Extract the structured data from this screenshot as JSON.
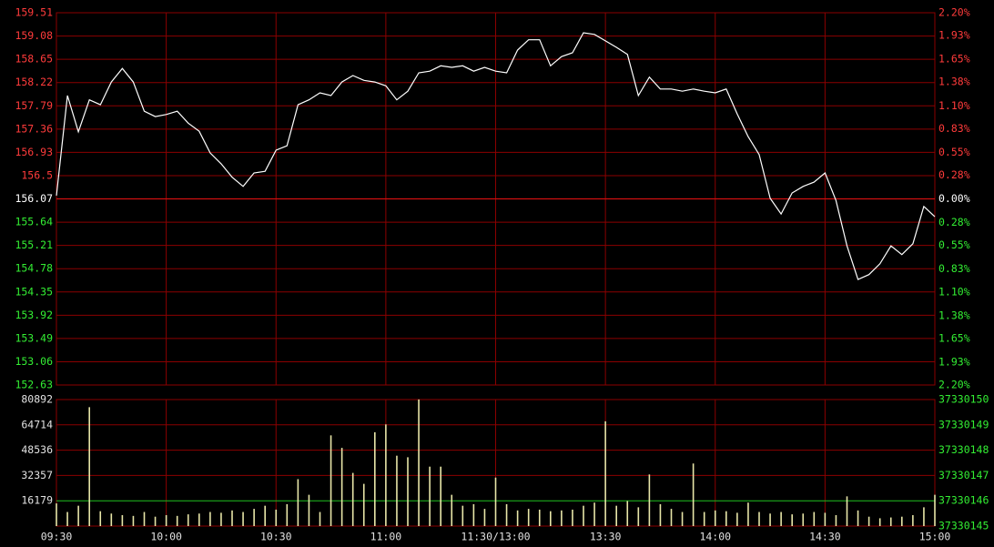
{
  "chart_data": [
    {
      "type": "line",
      "categories": [
        "09:30",
        null,
        null,
        null,
        null,
        null,
        null,
        null,
        null,
        null,
        "10:00",
        null,
        null,
        null,
        null,
        null,
        null,
        null,
        null,
        null,
        "10:30",
        null,
        null,
        null,
        null,
        null,
        null,
        null,
        null,
        null,
        "11:00",
        null,
        null,
        null,
        null,
        null,
        null,
        null,
        null,
        null,
        "11:30/13:00",
        null,
        null,
        null,
        null,
        null,
        null,
        null,
        null,
        null,
        "13:30",
        null,
        null,
        null,
        null,
        null,
        null,
        null,
        null,
        null,
        "14:00",
        null,
        null,
        null,
        null,
        null,
        null,
        null,
        null,
        null,
        "14:30",
        null,
        null,
        null,
        null,
        null,
        null,
        null,
        null,
        null,
        "15:00"
      ],
      "values": [
        156.13,
        157.98,
        157.31,
        157.9,
        157.81,
        158.23,
        158.48,
        158.23,
        157.69,
        157.59,
        157.63,
        157.69,
        157.47,
        157.32,
        156.92,
        156.72,
        156.47,
        156.3,
        156.55,
        156.58,
        156.97,
        157.05,
        157.81,
        157.9,
        158.03,
        157.98,
        158.23,
        158.35,
        158.26,
        158.23,
        158.16,
        157.9,
        158.06,
        158.4,
        158.43,
        158.53,
        158.5,
        158.53,
        158.43,
        158.5,
        158.43,
        158.4,
        158.82,
        159.01,
        159.01,
        158.53,
        158.7,
        158.77,
        159.14,
        159.11,
        158.99,
        158.87,
        158.74,
        157.98,
        158.32,
        158.1,
        158.1,
        158.06,
        158.1,
        158.06,
        158.03,
        158.1,
        157.64,
        157.22,
        156.89,
        156.08,
        155.79,
        156.18,
        156.3,
        156.38,
        156.55,
        156.04,
        155.2,
        154.58,
        154.67,
        154.87,
        155.2,
        155.04,
        155.24,
        155.93,
        155.74
      ],
      "color": "#ffffff",
      "ylim": [
        152.63,
        159.51
      ],
      "yticks": [
        152.63,
        153.06,
        153.49,
        153.92,
        154.35,
        154.78,
        155.21,
        155.64,
        156.07,
        156.5,
        156.93,
        157.36,
        157.79,
        158.22,
        158.65,
        159.08,
        159.51
      ],
      "y2lim": [
        -2.2,
        2.2
      ],
      "y2ticks": [
        {
          "value": -2.2,
          "label": "2.20%"
        },
        {
          "value": -1.93,
          "label": "1.93%"
        },
        {
          "value": -1.65,
          "label": "1.65%"
        },
        {
          "value": -1.38,
          "label": "1.38%"
        },
        {
          "value": -1.1,
          "label": "1.10%"
        },
        {
          "value": -0.83,
          "label": "0.83%"
        },
        {
          "value": -0.55,
          "label": "0.55%"
        },
        {
          "value": -0.28,
          "label": "0.28%"
        },
        {
          "value": 0,
          "label": "0.00%"
        },
        {
          "value": 0.28,
          "label": "0.28%"
        },
        {
          "value": 0.55,
          "label": "0.55%"
        },
        {
          "value": 0.83,
          "label": "0.83%"
        },
        {
          "value": 1.1,
          "label": "1.10%"
        },
        {
          "value": 1.38,
          "label": "1.38%"
        },
        {
          "value": 1.65,
          "label": "1.65%"
        },
        {
          "value": 1.93,
          "label": "1.93%"
        },
        {
          "value": 2.2,
          "label": "2.20%"
        }
      ],
      "grid": true
    },
    {
      "type": "bar",
      "categories": [
        "09:30",
        null,
        null,
        null,
        null,
        null,
        null,
        null,
        null,
        null,
        "10:00",
        null,
        null,
        null,
        null,
        null,
        null,
        null,
        null,
        null,
        "10:30",
        null,
        null,
        null,
        null,
        null,
        null,
        null,
        null,
        null,
        "11:00",
        null,
        null,
        null,
        null,
        null,
        null,
        null,
        null,
        null,
        "11:30/13:00",
        null,
        null,
        null,
        null,
        null,
        null,
        null,
        null,
        null,
        "13:30",
        null,
        null,
        null,
        null,
        null,
        null,
        null,
        null,
        null,
        "14:00",
        null,
        null,
        null,
        null,
        null,
        null,
        null,
        null,
        null,
        "14:30",
        null,
        null,
        null,
        null,
        null,
        null,
        null,
        null,
        null,
        "15:00"
      ],
      "values": [
        14500,
        9000,
        13000,
        76000,
        9500,
        8000,
        7000,
        6500,
        9000,
        6000,
        7000,
        6500,
        7500,
        8000,
        9000,
        8500,
        10000,
        9000,
        11000,
        13000,
        10500,
        14000,
        30000,
        20000,
        9000,
        58000,
        50000,
        34000,
        27000,
        60000,
        65000,
        45000,
        44000,
        81000,
        38000,
        38000,
        20000,
        13000,
        14000,
        11000,
        31000,
        14000,
        10000,
        11000,
        10500,
        9500,
        10000,
        10500,
        13000,
        15000,
        67000,
        13000,
        16000,
        12000,
        33000,
        14000,
        11000,
        9000,
        40000,
        9000,
        10000,
        9500,
        8500,
        15000,
        9000,
        8000,
        9000,
        7500,
        8000,
        9000,
        8500,
        7000,
        19000,
        10000,
        6000,
        5000,
        5500,
        6000,
        7000,
        12000,
        20000
      ],
      "color": "#e8e6a8",
      "ylim": [
        0,
        80892
      ],
      "yticks": [
        16179,
        32357,
        48536,
        64714,
        80892
      ],
      "y2lim": [
        37330145,
        37330150
      ],
      "y2ticks": [
        37330145,
        37330146,
        37330147,
        37330148,
        37330149,
        37330150
      ],
      "grid": true
    }
  ]
}
